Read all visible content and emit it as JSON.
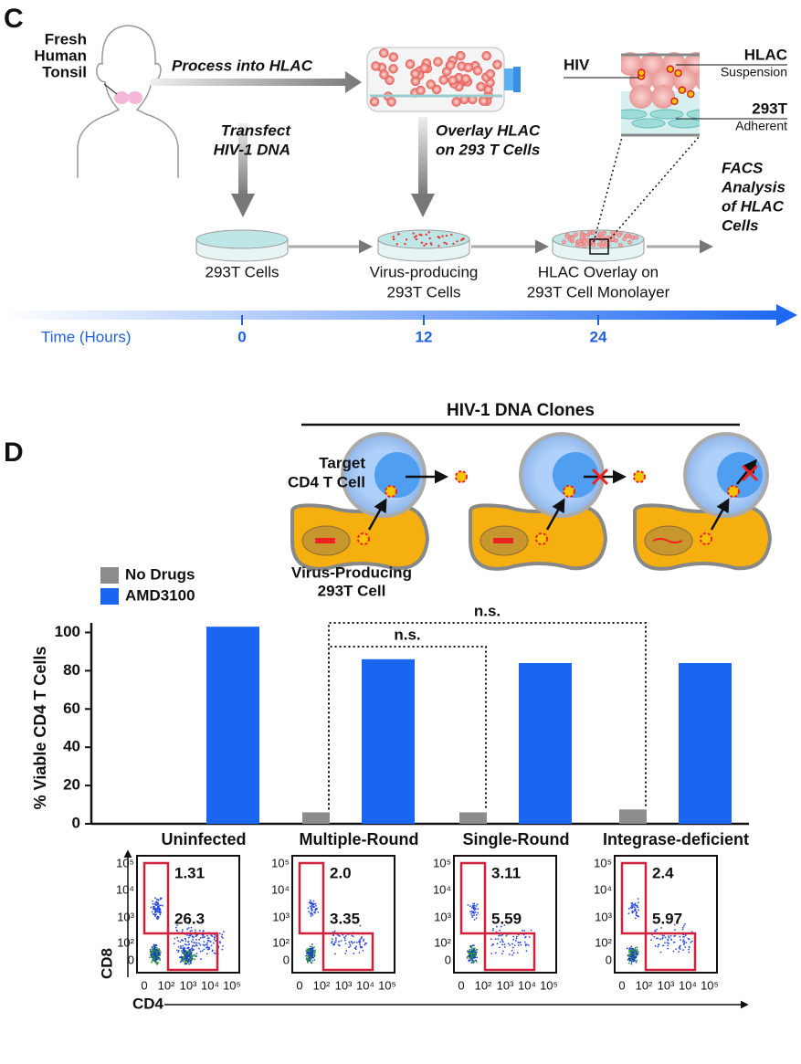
{
  "panel_c": {
    "label": "C",
    "tonsil": [
      "Fresh",
      "Human",
      "Tonsil"
    ],
    "process": "Process into HLAC",
    "transfect": [
      "Transfect",
      "HIV-1 DNA"
    ],
    "overlay": [
      "Overlay HLAC",
      "on 293 T Cells"
    ],
    "inset": {
      "hiv": "HIV",
      "hlac": "HLAC",
      "suspension": "Suspension",
      "t293": "293T",
      "adherent": "Adherent"
    },
    "dishes": [
      [
        "293T Cells"
      ],
      [
        "Virus-producing",
        "293T Cells"
      ],
      [
        "HLAC Overlay on",
        "293T Cell Monolayer"
      ]
    ],
    "facs": [
      "FACS",
      "Analysis",
      "of HLAC",
      "Cells"
    ],
    "timeline": {
      "label": "Time (Hours)",
      "ticks": [
        "0",
        "12",
        "24"
      ]
    }
  },
  "panel_d": {
    "label": "D",
    "clones": "HIV-1 DNA Clones",
    "target": [
      "Target",
      "CD4 T Cell"
    ],
    "producer": [
      "Virus-Producing",
      "293T Cell"
    ]
  },
  "chart_data": {
    "type": "bar",
    "ylabel": "% Viable CD4 T Cells",
    "categories": [
      "Uninfected",
      "Multiple-Round",
      "Single-Round",
      "Integrase-deficient"
    ],
    "series": [
      {
        "name": "No Drugs",
        "color": "#8c8c8c",
        "values": [
          null,
          6,
          6,
          7.5
        ]
      },
      {
        "name": "AMD3100",
        "color": "#1a66f2",
        "values": [
          103,
          86,
          84,
          84
        ]
      }
    ],
    "ylim": [
      0,
      105
    ],
    "yticks": [
      0,
      20,
      40,
      60,
      80,
      100
    ],
    "legend": "upper-left",
    "annotations": [
      "n.s.",
      "n.s."
    ]
  },
  "flow_plots": {
    "y_label": "CD8",
    "x_label": "CD4",
    "ticks": [
      "0",
      "10²",
      "10³",
      "10⁴",
      "10⁵"
    ],
    "plots": [
      {
        "upper": "1.31",
        "lower": "26.3"
      },
      {
        "upper": "2.0",
        "lower": "3.35"
      },
      {
        "upper": "3.11",
        "lower": "5.59"
      },
      {
        "upper": "2.4",
        "lower": "5.97"
      }
    ]
  }
}
